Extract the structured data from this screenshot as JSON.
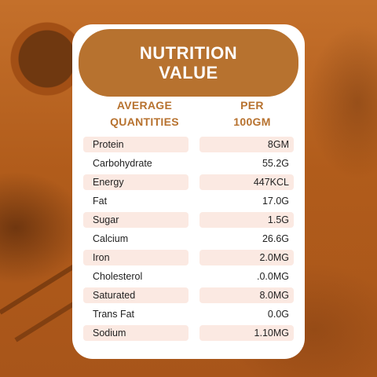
{
  "title": {
    "line1": "NUTRITION",
    "line2": "VALUE"
  },
  "headers": {
    "left_line1": "AVERAGE",
    "left_line2": "QUANTITIES",
    "right_line1": "PER",
    "right_line2": "100GM"
  },
  "rows": [
    {
      "name": "Protein",
      "value": "8GM"
    },
    {
      "name": "Carbohydrate",
      "value": "55.2G"
    },
    {
      "name": "Energy",
      "value": "447KCL"
    },
    {
      "name": "Fat",
      "value": "17.0G"
    },
    {
      "name": "Sugar",
      "value": "1.5G"
    },
    {
      "name": "Calcium",
      "value": "26.6G"
    },
    {
      "name": "Iron",
      "value": "2.0MG"
    },
    {
      "name": "Cholesterol",
      "value": ".0.0MG"
    },
    {
      "name": "Saturated",
      "value": "8.0MG"
    },
    {
      "name": "Trans Fat",
      "value": "0.0G"
    },
    {
      "name": "Sodium",
      "value": "1.10MG"
    }
  ],
  "colors": {
    "accent": "#b7722f",
    "row_shade": "#fbe9e2",
    "background": "#b8621f"
  }
}
